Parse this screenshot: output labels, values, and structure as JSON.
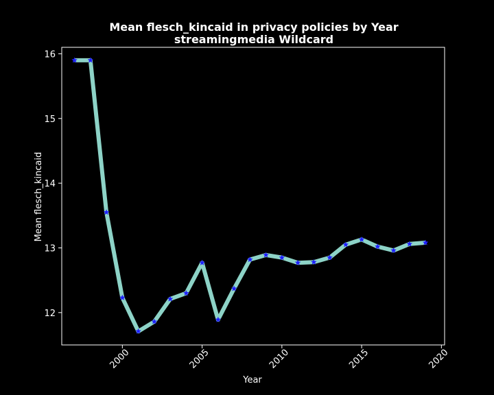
{
  "chart_data": {
    "type": "line",
    "title_line1": "Mean flesch_kincaid in privacy policies by Year",
    "title_line2": "streamingmedia Wildcard",
    "xlabel": "Year",
    "ylabel": "Mean flesch_kincaid",
    "xlim": [
      1996.2,
      2020.2
    ],
    "ylim": [
      11.5,
      16.1
    ],
    "x_ticks": [
      2000,
      2005,
      2010,
      2015,
      2020
    ],
    "y_ticks": [
      12,
      13,
      14,
      15,
      16
    ],
    "grid": false,
    "colors": {
      "background": "#000000",
      "line": "#8dd3c7",
      "marker": "#1f1fff",
      "text": "#ffffff"
    },
    "series": [
      {
        "x": [
          1997,
          1998,
          1999,
          2000,
          2001,
          2002,
          2003,
          2004,
          2005,
          2006,
          2007,
          2008,
          2009,
          2010,
          2011,
          2012,
          2013,
          2014,
          2015,
          2016,
          2017,
          2018,
          2019
        ],
        "values": [
          15.9,
          15.9,
          13.55,
          12.23,
          11.71,
          11.86,
          12.21,
          12.3,
          12.77,
          11.89,
          12.37,
          12.82,
          12.89,
          12.85,
          12.77,
          12.78,
          12.85,
          13.05,
          13.13,
          13.02,
          12.96,
          13.06,
          13.08
        ]
      }
    ]
  }
}
